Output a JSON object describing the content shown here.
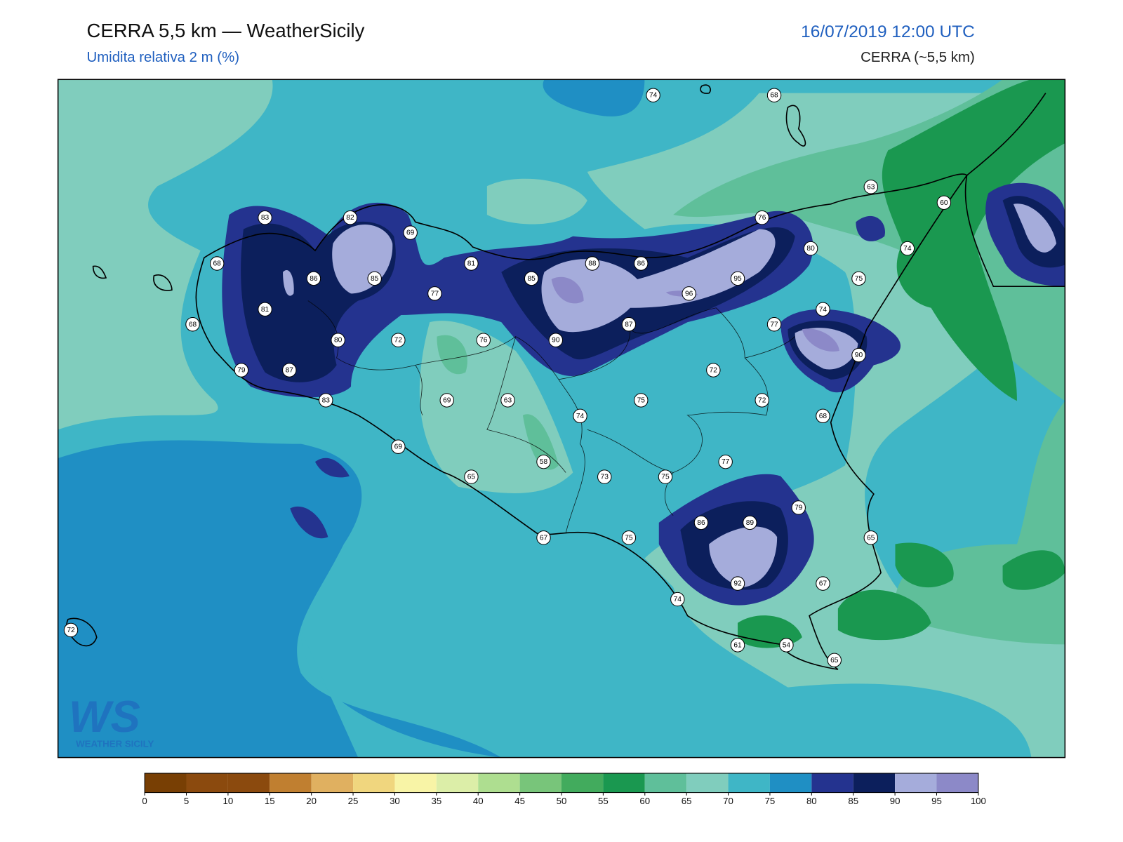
{
  "header": {
    "title": "CERRA 5,5 km — WeatherSicily",
    "subtitle": "Umidita relativa 2 m (%)",
    "datetime": "16/07/2019 12:00 UTC",
    "model": "CERRA (~5,5 km)"
  },
  "logo": {
    "mark": "WS",
    "text": "Weather Sicily"
  },
  "stations": [
    74,
    68,
    63,
    60,
    83,
    82,
    69,
    76,
    80,
    74,
    68,
    86,
    85,
    81,
    85,
    88,
    86,
    95,
    75,
    77,
    96,
    81,
    74,
    68,
    87,
    77,
    80,
    72,
    76,
    90,
    90,
    79,
    87,
    72,
    83,
    69,
    63,
    75,
    72,
    74,
    68,
    69,
    58,
    77,
    65,
    73,
    75,
    79,
    86,
    89,
    67,
    75,
    65,
    92,
    67,
    74,
    72,
    61,
    54,
    65
  ],
  "colorbar": {
    "ticks": [
      0,
      5,
      10,
      15,
      20,
      25,
      30,
      35,
      40,
      45,
      50,
      55,
      60,
      65,
      70,
      75,
      80,
      85,
      90,
      95,
      100
    ],
    "colors": [
      "#783f04",
      "#8b4a0e",
      "#8b4a0e",
      "#c07f30",
      "#e0b060",
      "#f0d67e",
      "#f8f4a6",
      "#dceea8",
      "#aede90",
      "#78c57a",
      "#42ab5d",
      "#1a9850",
      "#5fbf9a",
      "#80cdbd",
      "#3fb6c6",
      "#1f8fc4",
      "#24338f",
      "#0c1f5c",
      "#a5acdb",
      "#8c89c8"
    ]
  }
}
